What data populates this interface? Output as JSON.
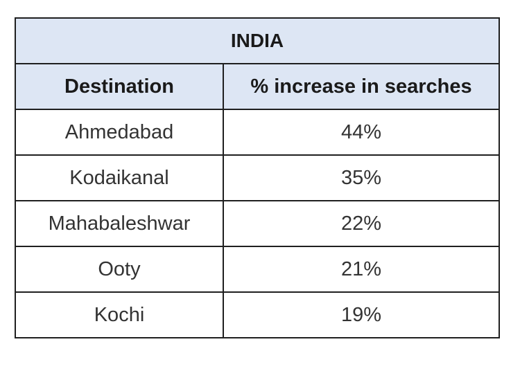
{
  "chart_data": {
    "type": "table",
    "title": "INDIA",
    "columns": [
      "Destination",
      "% increase in searches"
    ],
    "rows": [
      [
        "Ahmedabad",
        "44%"
      ],
      [
        "Kodaikanal",
        "35%"
      ],
      [
        "Mahabaleshwar",
        "22%"
      ],
      [
        "Ooty",
        "21%"
      ],
      [
        "Kochi",
        "19%"
      ]
    ],
    "categories": [
      "Ahmedabad",
      "Kodaikanal",
      "Mahabaleshwar",
      "Ooty",
      "Kochi"
    ],
    "values": [
      44,
      35,
      22,
      21,
      19
    ],
    "colors": {
      "header_background": "#dde6f4",
      "border": "#1f1f1f",
      "text": "#333333"
    }
  }
}
